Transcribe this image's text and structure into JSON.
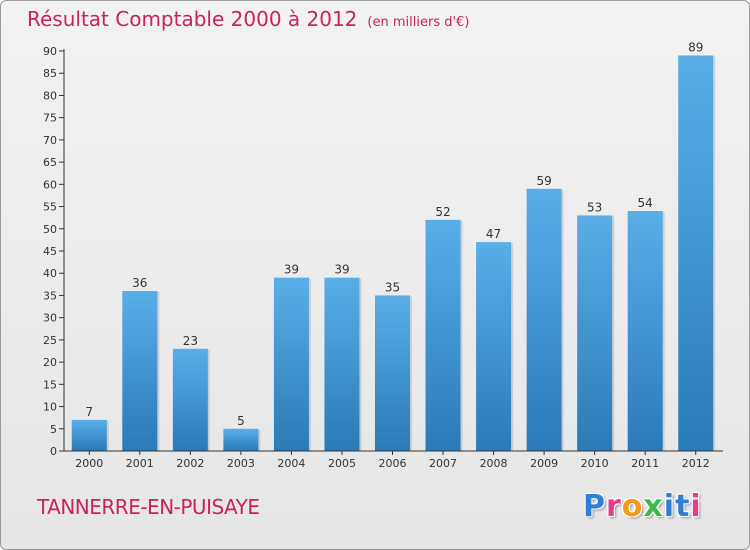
{
  "chart_data": {
    "type": "bar",
    "title": "Résultat Comptable 2000 à 2012",
    "subtitle": "(en milliers d'€)",
    "categories": [
      "2000",
      "2001",
      "2002",
      "2003",
      "2004",
      "2005",
      "2006",
      "2007",
      "2008",
      "2009",
      "2010",
      "2011",
      "2012"
    ],
    "values": [
      7,
      36,
      23,
      5,
      39,
      39,
      35,
      52,
      47,
      59,
      53,
      54,
      89
    ],
    "ylim": [
      0,
      90
    ],
    "yticks": [
      0,
      5,
      10,
      15,
      20,
      25,
      30,
      35,
      40,
      45,
      50,
      55,
      60,
      65,
      70,
      75,
      80,
      85,
      90
    ],
    "xlabel": "",
    "ylabel": "",
    "grid": false
  },
  "footer": {
    "commune": "TANNERRE-EN-PUISAYE",
    "logo_letters": [
      "P",
      "r",
      "o",
      "x",
      "i",
      "t",
      "i"
    ]
  },
  "colors": {
    "title": "#c8235a",
    "bar_top": "#5aaee8",
    "bar_bottom": "#2a7ab8",
    "axis": "#333333"
  }
}
